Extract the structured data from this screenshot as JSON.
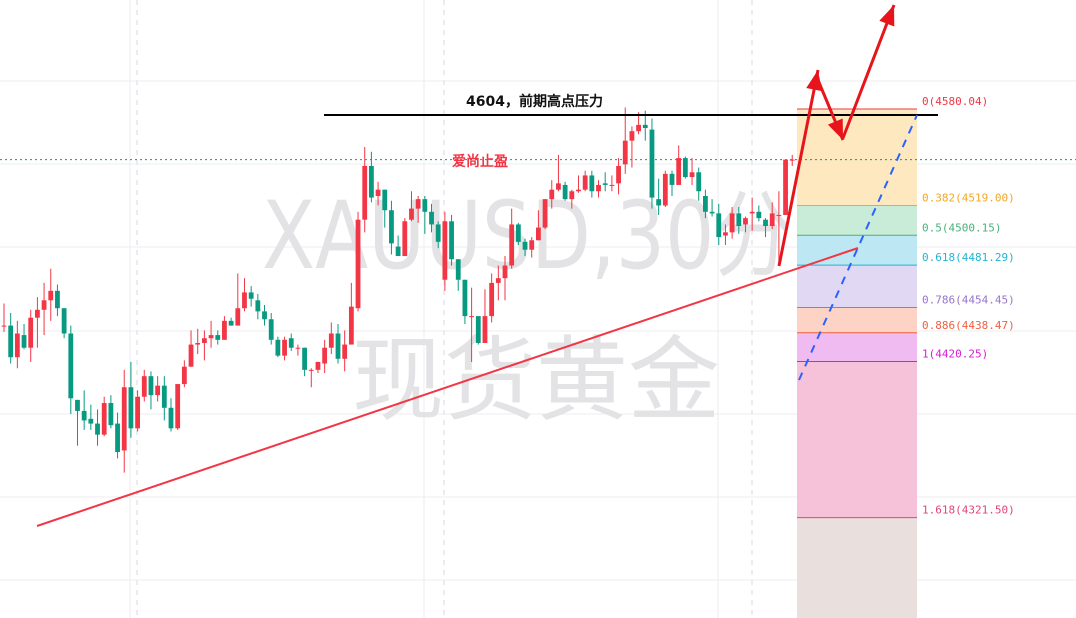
{
  "watermark": {
    "symbol": "XAUUSD,30分",
    "name": "现货黄金"
  },
  "annotations": {
    "resistance_label": "4604，前期高点压力",
    "take_profit_label": "爱尚止盈"
  },
  "colors": {
    "up": "#f23645",
    "down": "#089981",
    "trendline": "#f23645",
    "arrows": "#e8141c",
    "projection": "#2962ff",
    "resistance": "#000000",
    "last_price": "#089981"
  },
  "chart_data": {
    "type": "candlestick",
    "title": "",
    "timeframe": "30分",
    "last_price": 4548,
    "ylim": [
      4258,
      4649
    ],
    "grid": true,
    "candles_ohlc": [
      [
        4443,
        4457,
        4439,
        4443
      ],
      [
        4443,
        4451,
        4419,
        4423
      ],
      [
        4423,
        4446,
        4416,
        4438
      ],
      [
        4437,
        4444,
        4428,
        4429
      ],
      [
        4429,
        4453,
        4420,
        4448
      ],
      [
        4448,
        4461,
        4429,
        4453
      ],
      [
        4453,
        4470,
        4437,
        4459
      ],
      [
        4459,
        4479,
        4446,
        4465
      ],
      [
        4465,
        4469,
        4449,
        4454
      ],
      [
        4454,
        4454,
        4435,
        4438
      ],
      [
        4438,
        4443,
        4387,
        4397
      ],
      [
        4396,
        4396,
        4367,
        4389
      ],
      [
        4389,
        4402,
        4377,
        4383
      ],
      [
        4384,
        4393,
        4377,
        4381
      ],
      [
        4381,
        4390,
        4367,
        4374
      ],
      [
        4374,
        4398,
        4373,
        4394
      ],
      [
        4394,
        4399,
        4378,
        4380
      ],
      [
        4381,
        4388,
        4359,
        4363
      ],
      [
        4364,
        4415,
        4350,
        4404
      ],
      [
        4404,
        4420,
        4372,
        4378
      ],
      [
        4378,
        4402,
        4376,
        4398
      ],
      [
        4398,
        4415,
        4395,
        4411
      ],
      [
        4411,
        4414,
        4390,
        4399
      ],
      [
        4399,
        4411,
        4395,
        4405
      ],
      [
        4405,
        4411,
        4383,
        4391
      ],
      [
        4391,
        4397,
        4376,
        4378
      ],
      [
        4378,
        4406,
        4377,
        4406
      ],
      [
        4406,
        4421,
        4404,
        4417
      ],
      [
        4417,
        4440,
        4417,
        4431
      ],
      [
        4431,
        4441,
        4425,
        4432
      ],
      [
        4432,
        4440,
        4421,
        4435
      ],
      [
        4435,
        4446,
        4429,
        4437
      ],
      [
        4437,
        4440,
        4431,
        4434
      ],
      [
        4434,
        4449,
        4434,
        4446
      ],
      [
        4446,
        4448,
        4443,
        4443
      ],
      [
        4443,
        4476,
        4443,
        4454
      ],
      [
        4454,
        4473,
        4452,
        4464
      ],
      [
        4464,
        4468,
        4455,
        4460
      ],
      [
        4459,
        4463,
        4447,
        4452
      ],
      [
        4452,
        4456,
        4443,
        4447
      ],
      [
        4447,
        4451,
        4431,
        4434
      ],
      [
        4434,
        4436,
        4423,
        4424
      ],
      [
        4424,
        4436,
        4421,
        4434
      ],
      [
        4435,
        4438,
        4427,
        4429
      ],
      [
        4429,
        4431,
        4424,
        4429
      ],
      [
        4429,
        4429,
        4411,
        4415
      ],
      [
        4415,
        4416,
        4404,
        4415
      ],
      [
        4415,
        4420,
        4413,
        4420
      ],
      [
        4419,
        4434,
        4413,
        4429
      ],
      [
        4429,
        4445,
        4425,
        4438
      ],
      [
        4438,
        4444,
        4419,
        4422
      ],
      [
        4422,
        4440,
        4414,
        4431
      ],
      [
        4431,
        4470,
        4431,
        4455
      ],
      [
        4454,
        4515,
        4452,
        4510
      ],
      [
        4510,
        4556,
        4502,
        4544
      ],
      [
        4544,
        4553,
        4521,
        4524
      ],
      [
        4525,
        4534,
        4519,
        4529
      ],
      [
        4529,
        4529,
        4505,
        4516
      ],
      [
        4516,
        4522,
        4488,
        4495
      ],
      [
        4493,
        4500,
        4487,
        4487
      ],
      [
        4487,
        4511,
        4487,
        4509
      ],
      [
        4510,
        4528,
        4509,
        4517
      ],
      [
        4517,
        4525,
        4508,
        4523
      ],
      [
        4523,
        4525,
        4501,
        4515
      ],
      [
        4515,
        4520,
        4502,
        4507
      ],
      [
        4507,
        4509,
        4492,
        4496
      ],
      [
        4472,
        4515,
        4465,
        4509
      ],
      [
        4509,
        4513,
        4481,
        4485
      ],
      [
        4485,
        4485,
        4465,
        4472
      ],
      [
        4472,
        4472,
        4444,
        4449
      ],
      [
        4449,
        4467,
        4420,
        4449
      ],
      [
        4449,
        4449,
        4431,
        4432
      ],
      [
        4432,
        4466,
        4432,
        4449
      ],
      [
        4449,
        4476,
        4445,
        4470
      ],
      [
        4470,
        4481,
        4459,
        4473
      ],
      [
        4473,
        4487,
        4459,
        4481
      ],
      [
        4481,
        4517,
        4479,
        4507
      ],
      [
        4507,
        4508,
        4494,
        4496
      ],
      [
        4496,
        4498,
        4487,
        4491
      ],
      [
        4491,
        4499,
        4486,
        4497
      ],
      [
        4497,
        4516,
        4497,
        4505
      ],
      [
        4505,
        4523,
        4504,
        4523
      ],
      [
        4523,
        4535,
        4517,
        4529
      ],
      [
        4529,
        4551,
        4528,
        4533
      ],
      [
        4532,
        4534,
        4522,
        4523
      ],
      [
        4523,
        4529,
        4517,
        4528
      ],
      [
        4528,
        4538,
        4527,
        4529
      ],
      [
        4529,
        4541,
        4528,
        4538
      ],
      [
        4538,
        4541,
        4524,
        4528
      ],
      [
        4528,
        4535,
        4524,
        4532
      ],
      [
        4533,
        4540,
        4528,
        4532
      ],
      [
        4532,
        4538,
        4528,
        4532
      ],
      [
        4533,
        4549,
        4526,
        4544
      ],
      [
        4545,
        4581,
        4539,
        4560
      ],
      [
        4560,
        4569,
        4543,
        4566
      ],
      [
        4566,
        4578,
        4564,
        4570
      ],
      [
        4570,
        4579,
        4560,
        4568
      ],
      [
        4567,
        4574,
        4517,
        4524
      ],
      [
        4523,
        4536,
        4513,
        4519
      ],
      [
        4519,
        4541,
        4518,
        4539
      ],
      [
        4539,
        4541,
        4525,
        4532
      ],
      [
        4532,
        4557,
        4532,
        4549
      ],
      [
        4549,
        4550,
        4536,
        4537
      ],
      [
        4537,
        4549,
        4532,
        4540
      ],
      [
        4540,
        4543,
        4522,
        4528
      ],
      [
        4525,
        4529,
        4511,
        4515
      ],
      [
        4515,
        4523,
        4512,
        4514
      ],
      [
        4514,
        4520,
        4494,
        4499
      ],
      [
        4500,
        4507,
        4494,
        4502
      ],
      [
        4502,
        4518,
        4498,
        4514
      ],
      [
        4514,
        4518,
        4501,
        4506
      ],
      [
        4507,
        4512,
        4502,
        4511
      ],
      [
        4514,
        4524,
        4503,
        4515
      ],
      [
        4515,
        4519,
        4509,
        4511
      ],
      [
        4510,
        4511,
        4499,
        4506
      ],
      [
        4506,
        4521,
        4504,
        4514
      ],
      [
        4513,
        4528,
        4483,
        4513
      ],
      [
        4513,
        4548,
        4513,
        4548
      ],
      [
        4548,
        4551,
        4544,
        4548
      ]
    ],
    "fibonacci": {
      "levels": [
        {
          "ratio": "0",
          "price": 4580.04,
          "label": "0(4580.04)",
          "color": "#f23645",
          "fill": "#fde8c0"
        },
        {
          "ratio": "0.382",
          "price": 4519.0,
          "label": "0.382(4519.00)",
          "color": "#f5a623",
          "fill": "#c8ecd8"
        },
        {
          "ratio": "0.5",
          "price": 4500.15,
          "label": "0.5(4500.15)",
          "color": "#4caf7d",
          "fill": "#bde8f3"
        },
        {
          "ratio": "0.618",
          "price": 4481.29,
          "label": "0.618(4481.29)",
          "color": "#1fb5d6",
          "fill": "#e1d8f4"
        },
        {
          "ratio": "0.786",
          "price": 4454.45,
          "label": "0.786(4454.45)",
          "color": "#9575cd",
          "fill": "#fdd3c5"
        },
        {
          "ratio": "0.886",
          "price": 4438.47,
          "label": "0.886(4438.47)",
          "color": "#f06040",
          "fill": "#f0bbf0"
        },
        {
          "ratio": "1",
          "price": 4420.25,
          "label": "1(4420.25)",
          "color": "#d81bd8",
          "fill": "#f6c2da"
        },
        {
          "ratio": "1.618",
          "price": 4321.5,
          "label": "1.618(4321.50)",
          "color": "#e0457b",
          "fill": "#e9dfdd"
        }
      ]
    }
  }
}
